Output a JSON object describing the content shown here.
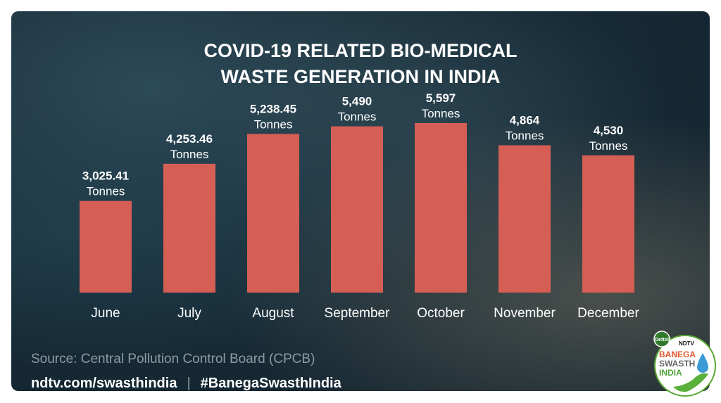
{
  "chart_data": {
    "type": "bar",
    "title": "COVID-19 RELATED BIO-MEDICAL WASTE GENERATION IN INDIA",
    "title_lines": [
      "COVID-19 RELATED BIO-MEDICAL",
      "WASTE GENERATION IN INDIA"
    ],
    "categories": [
      "June",
      "July",
      "August",
      "September",
      "October",
      "November",
      "December"
    ],
    "values": [
      3025.41,
      4253.46,
      5238.45,
      5490,
      5597,
      4864,
      4530
    ],
    "value_labels": [
      "3,025.41",
      "4,253.46",
      "5,238.45",
      "5,490",
      "5,597",
      "4,864",
      "4,530"
    ],
    "unit_label": "Tonnes",
    "xlabel": "",
    "ylabel": "",
    "ylim": [
      0,
      5597
    ],
    "grid": false,
    "bar_color": "#d65f55"
  },
  "source": "Source: Central Pollution Control Board (CPCB)",
  "footer": {
    "url": "ndtv.com/swasthindia",
    "separator": "|",
    "hashtag": "#BanegaSwasthIndia"
  },
  "logo": {
    "brand1": "Dettol",
    "brand2": "NDTV",
    "line1": "BANEGA",
    "line2": "SWASTH",
    "line3": "INDIA"
  }
}
